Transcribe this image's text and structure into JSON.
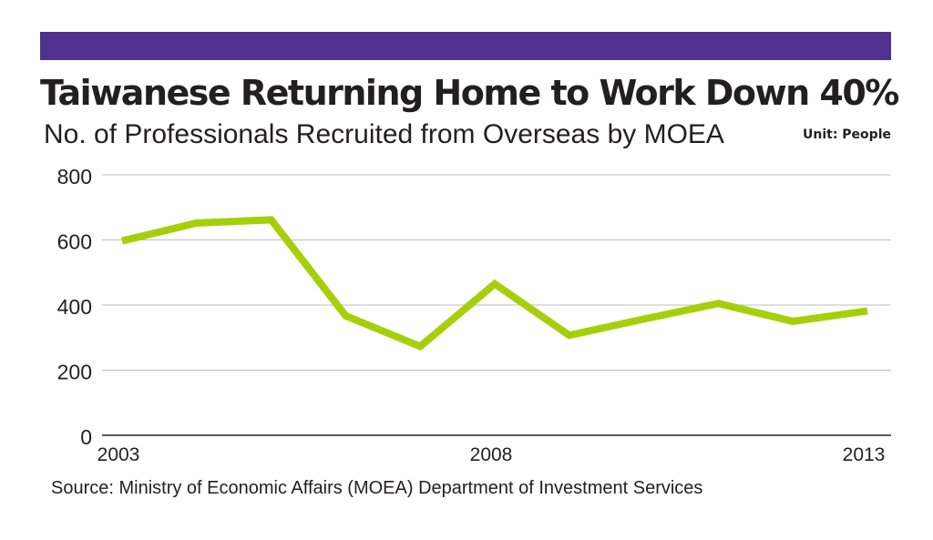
{
  "header": {
    "bar_color": "#51318f"
  },
  "title": "Taiwanese Returning Home to Work Down 40%",
  "subtitle": "No. of Professionals Recruited from Overseas by MOEA",
  "unit_label": "Unit: People",
  "source": "Source: Ministry of Economic Affairs (MOEA) Department of Investment Services",
  "chart_data": {
    "type": "line",
    "x": [
      2003,
      2004,
      2005,
      2006,
      2007,
      2008,
      2009,
      2010,
      2011,
      2012,
      2013
    ],
    "series": [
      {
        "values": [
          597,
          652,
          662,
          367,
          273,
          465,
          307,
          357,
          405,
          350,
          382
        ],
        "color": "#a6cf0a"
      }
    ],
    "x_tick_labels": [
      "2003",
      "2008",
      "2013"
    ],
    "y_ticks": [
      0,
      200,
      400,
      600,
      800
    ],
    "y_tick_labels": [
      "0",
      "200",
      "400",
      "600",
      "800"
    ],
    "ylim": [
      0,
      800
    ],
    "xlim": [
      2003,
      2013
    ],
    "grid": true,
    "gridline_color": "#bcbcbc",
    "axis_color": "#231f20"
  }
}
